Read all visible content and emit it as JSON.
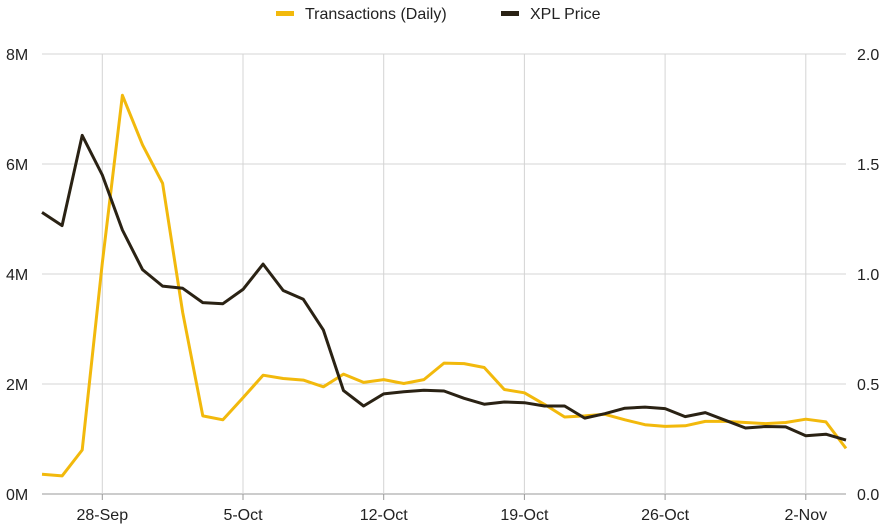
{
  "chart_data": {
    "type": "line",
    "title": "",
    "xlabel": "",
    "ylabel": "",
    "legend_position": "top-center",
    "grid": "vertical lines at x tick marks, horizontal lines at y ticks",
    "x_ticks": [
      "28-Sep",
      "5-Oct",
      "12-Oct",
      "19-Oct",
      "26-Oct",
      "2-Nov"
    ],
    "x_tick_dates": [
      "2025-09-28",
      "2025-10-05",
      "2025-10-12",
      "2025-10-19",
      "2025-10-26",
      "2025-11-02"
    ],
    "y_left": {
      "ticks": [
        "0M",
        "2M",
        "4M",
        "6M",
        "8M"
      ],
      "range": [
        0,
        8000000
      ]
    },
    "y_right": {
      "ticks": [
        "0.0",
        "0.5",
        "1.0",
        "1.5",
        "2.0"
      ],
      "range": [
        0,
        2.0
      ]
    },
    "x": [
      "2025-09-25",
      "2025-09-26",
      "2025-09-27",
      "2025-09-28",
      "2025-09-29",
      "2025-09-30",
      "2025-10-01",
      "2025-10-02",
      "2025-10-03",
      "2025-10-04",
      "2025-10-05",
      "2025-10-06",
      "2025-10-07",
      "2025-10-08",
      "2025-10-09",
      "2025-10-10",
      "2025-10-11",
      "2025-10-12",
      "2025-10-13",
      "2025-10-14",
      "2025-10-15",
      "2025-10-16",
      "2025-10-17",
      "2025-10-18",
      "2025-10-19",
      "2025-10-20",
      "2025-10-21",
      "2025-10-22",
      "2025-10-23",
      "2025-10-24",
      "2025-10-25",
      "2025-10-26",
      "2025-10-27",
      "2025-10-28",
      "2025-10-29",
      "2025-10-30",
      "2025-10-31",
      "2025-11-01",
      "2025-11-02",
      "2025-11-03",
      "2025-11-04"
    ],
    "series": [
      {
        "name": "Transactions (Daily)",
        "axis": "left",
        "color": "#F2B90C",
        "values": [
          360000,
          330000,
          800000,
          4200000,
          7250000,
          6350000,
          5650000,
          3300000,
          1420000,
          1350000,
          1750000,
          2160000,
          2100000,
          2070000,
          1950000,
          2180000,
          2030000,
          2080000,
          2010000,
          2080000,
          2380000,
          2370000,
          2300000,
          1900000,
          1840000,
          1630000,
          1400000,
          1420000,
          1450000,
          1350000,
          1260000,
          1230000,
          1240000,
          1320000,
          1320000,
          1300000,
          1280000,
          1300000,
          1360000,
          1310000,
          830000
        ]
      },
      {
        "name": "XPL Price",
        "axis": "right",
        "color": "#2A2214",
        "values": [
          1.28,
          1.22,
          1.63,
          1.45,
          1.2,
          1.02,
          0.945,
          0.935,
          0.87,
          0.865,
          0.93,
          1.045,
          0.925,
          0.885,
          0.745,
          0.47,
          0.4,
          0.455,
          0.465,
          0.472,
          0.468,
          0.435,
          0.408,
          0.418,
          0.415,
          0.4,
          0.4,
          0.345,
          0.365,
          0.39,
          0.395,
          0.388,
          0.352,
          0.37,
          0.335,
          0.3,
          0.307,
          0.305,
          0.265,
          0.272,
          0.245
        ]
      }
    ]
  }
}
